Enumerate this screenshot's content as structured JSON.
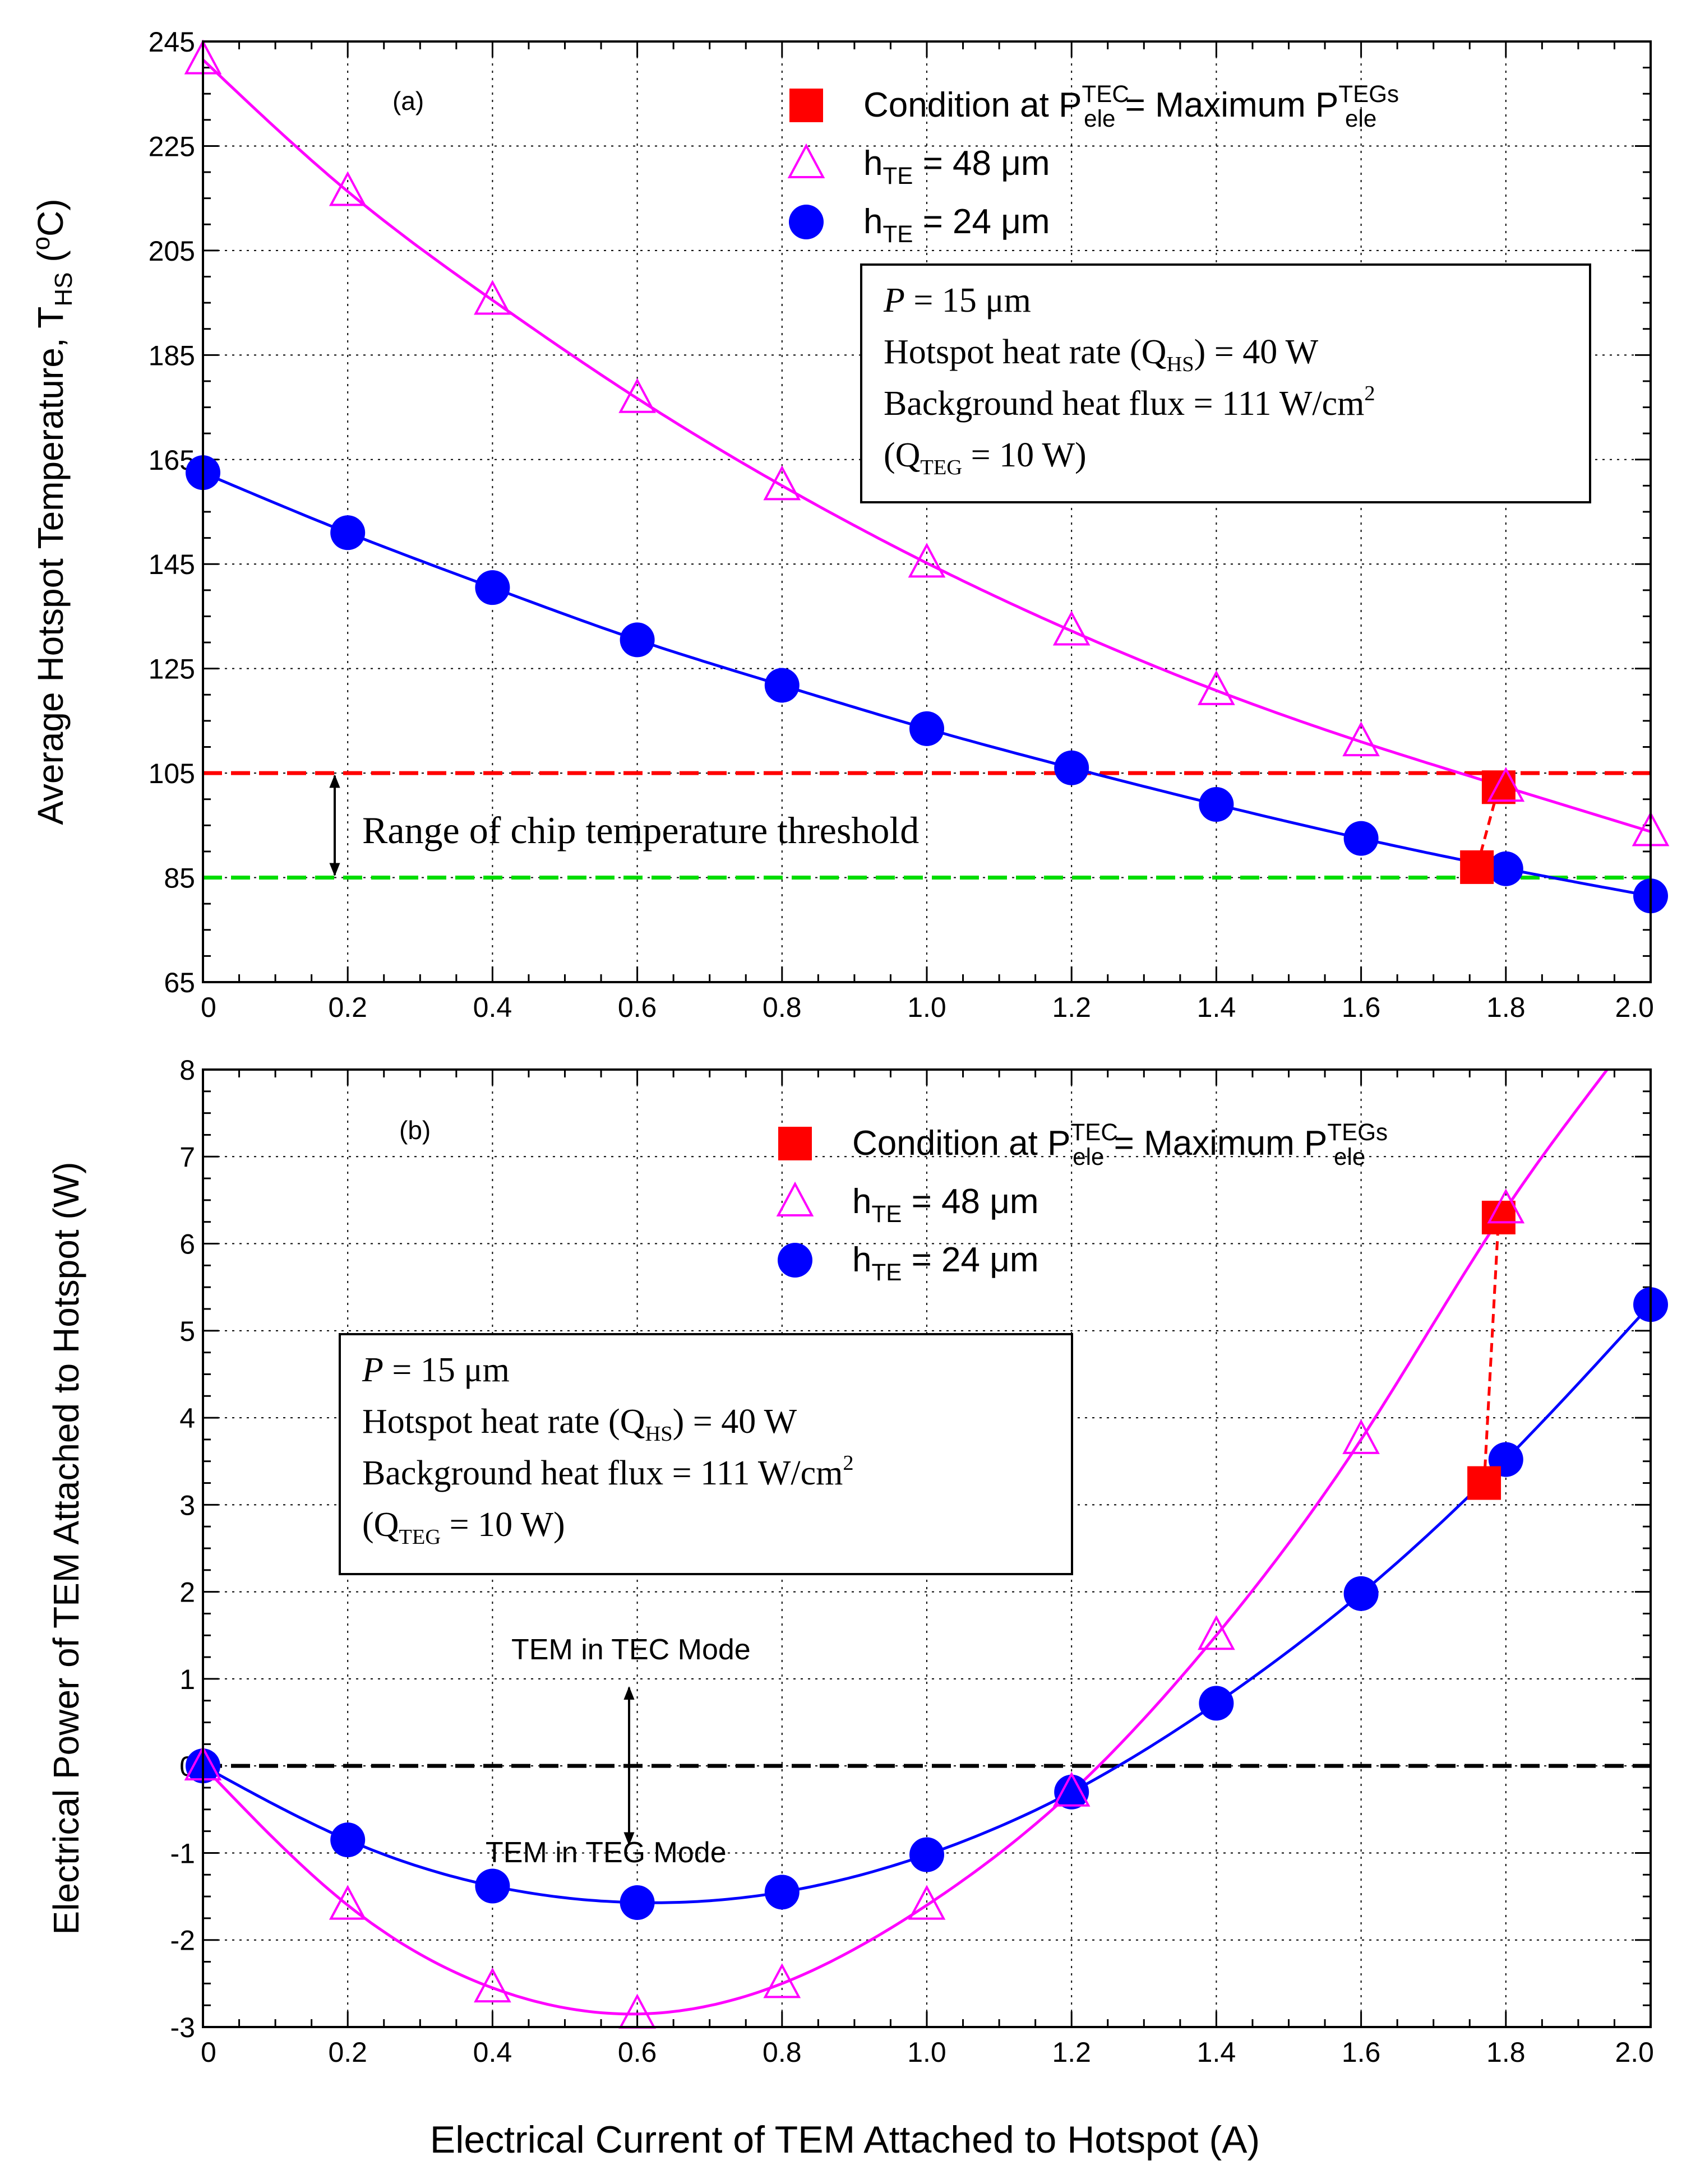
{
  "colors": {
    "h48": "#ff00ff",
    "h24": "#0000ff",
    "condition": "#ff0000",
    "threshold_high": "#ff0000",
    "threshold_low": "#00dd00",
    "zero_line": "#000000",
    "grid": "#000000"
  },
  "icons": {
    "condition": "red-square-marker",
    "h48": "magenta-open-triangle-marker",
    "h24": "blue-filled-circle-marker"
  },
  "figure": {
    "xlabel": "Electrical Current of TEM Attached to Hotspot (A)"
  },
  "chart_data": [
    {
      "type": "line",
      "panel_label": "(a)",
      "ylabel": {
        "main": "Average Hotspot Temperature, T",
        "sub": "HS",
        "open": " (",
        "sup": "o",
        "close": "C)"
      },
      "xlim": [
        0,
        2.0
      ],
      "ylim": [
        65,
        245
      ],
      "xticks": [
        "0",
        "0.2",
        "0.4",
        "0.6",
        "0.8",
        "1.0",
        "1.2",
        "1.4",
        "1.6",
        "1.8",
        "2.0"
      ],
      "yticks": [
        "65",
        "85",
        "105",
        "125",
        "145",
        "165",
        "185",
        "205",
        "225",
        "245"
      ],
      "grid": true,
      "legend_position": "top-center",
      "legend": [
        {
          "key": "condition",
          "parts": {
            "a": "Condition at P",
            "sup1": "TEC",
            "sub1": "ele",
            "b": " = Maximum P",
            "sup2": "TEGs",
            "sub2": "ele"
          }
        },
        {
          "key": "h48",
          "parts": {
            "a": "h",
            "sub": "TE",
            "b": " = 48 μm"
          }
        },
        {
          "key": "h24",
          "parts": {
            "a": "h",
            "sub": "TE",
            "b": " = 24 μm"
          }
        }
      ],
      "series": [
        {
          "key": "h48",
          "name": "h_TE = 48 μm",
          "x": [
            0,
            0.2,
            0.4,
            0.6,
            0.8,
            1.0,
            1.2,
            1.4,
            1.6,
            1.8,
            2.0
          ],
          "y": [
            241.5,
            216.3,
            195.5,
            176.7,
            160.0,
            145.2,
            132.2,
            120.8,
            111.0,
            102.3,
            93.8
          ]
        },
        {
          "key": "h24",
          "name": "h_TE = 24 μm",
          "x": [
            0,
            0.2,
            0.4,
            0.6,
            0.8,
            1.0,
            1.2,
            1.4,
            1.6,
            1.8,
            2.0
          ],
          "y": [
            162.5,
            151.0,
            140.5,
            130.5,
            121.8,
            113.5,
            106.0,
            99.0,
            92.5,
            86.7,
            81.5
          ]
        },
        {
          "key": "condition",
          "x": [
            1.76,
            1.79
          ],
          "y": [
            87.0,
            102.3
          ]
        }
      ],
      "thresholds": [
        {
          "key": "threshold_high",
          "y": 105
        },
        {
          "key": "threshold_low",
          "y": 85
        }
      ],
      "threshold_label": "Range of chip temperature threshold",
      "info_box": {
        "line1": {
          "italic": "P",
          "rest": " = 15 μm"
        },
        "line2": {
          "a": "Hotspot heat rate (Q",
          "sub": "HS",
          "b": ") = 40 W"
        },
        "line3": {
          "a": "Background heat flux = 111 W/cm",
          "sup": "2"
        },
        "line4": {
          "a": "(Q",
          "sub": "TEG",
          "b": " = 10 W)"
        }
      }
    },
    {
      "type": "line",
      "panel_label": "(b)",
      "ylabel": {
        "main": "Electrical Power of TEM Attached to Hotspot (W)"
      },
      "xlim": [
        0,
        2.0
      ],
      "ylim": [
        -3,
        8
      ],
      "xticks": [
        "0",
        "0.2",
        "0.4",
        "0.6",
        "0.8",
        "1.0",
        "1.2",
        "1.4",
        "1.6",
        "1.8",
        "2.0"
      ],
      "yticks": [
        "-3",
        "-2",
        "-1",
        "0",
        "1",
        "2",
        "3",
        "4",
        "5",
        "6",
        "7",
        "8"
      ],
      "grid": true,
      "legend_position": "top-center",
      "legend": [
        {
          "key": "condition",
          "parts": {
            "a": "Condition at P",
            "sup1": "TEC",
            "sub1": "ele",
            "b": " = Maximum P",
            "sup2": "TEGs",
            "sub2": "ele"
          }
        },
        {
          "key": "h48",
          "parts": {
            "a": "h",
            "sub": "TE",
            "b": " = 48 μm"
          }
        },
        {
          "key": "h24",
          "parts": {
            "a": "h",
            "sub": "TE",
            "b": " = 24 μm"
          }
        }
      ],
      "series": [
        {
          "key": "h48",
          "name": "h_TE = 48 μm",
          "x": [
            0,
            0.2,
            0.4,
            0.6,
            0.8,
            1.0,
            1.2,
            1.4,
            1.6,
            1.8
          ],
          "y": [
            0.0,
            -1.6,
            -2.55,
            -2.85,
            -2.5,
            -1.6,
            -0.3,
            1.5,
            3.75,
            6.4
          ],
          "curve_end": {
            "x": 1.94,
            "y": 8.0
          }
        },
        {
          "key": "h24",
          "name": "h_TE = 24 μm",
          "x": [
            0,
            0.2,
            0.4,
            0.6,
            0.8,
            1.0,
            1.2,
            1.4,
            1.6,
            1.8,
            2.0
          ],
          "y": [
            0.0,
            -0.85,
            -1.38,
            -1.57,
            -1.45,
            -1.02,
            -0.3,
            0.72,
            1.98,
            3.52,
            5.3
          ]
        },
        {
          "key": "condition",
          "x": [
            1.77,
            1.79
          ],
          "y": [
            3.25,
            6.3
          ]
        }
      ],
      "zero_line": {
        "key": "zero_line",
        "y": 0
      },
      "annotations": {
        "tec_mode": "TEM in TEC Mode",
        "teg_mode": "TEM in TEG Mode"
      },
      "info_box": {
        "line1": {
          "italic": "P",
          "rest": " = 15 μm"
        },
        "line2": {
          "a": "Hotspot heat rate (Q",
          "sub": "HS",
          "b": ") = 40 W"
        },
        "line3": {
          "a": "Background heat flux = 111 W/cm",
          "sup": "2"
        },
        "line4": {
          "a": "(Q",
          "sub": "TEG",
          "b": " = 10 W)"
        }
      }
    }
  ]
}
